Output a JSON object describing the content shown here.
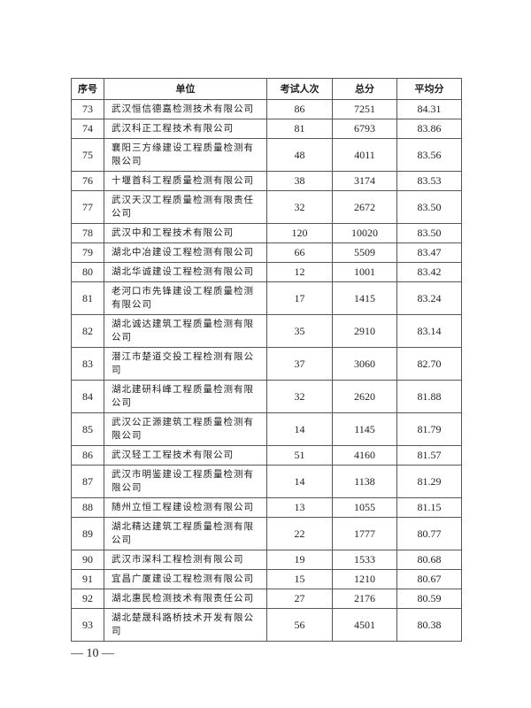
{
  "table": {
    "headers": [
      "序号",
      "单位",
      "考试人次",
      "总分",
      "平均分"
    ],
    "rows": [
      [
        "73",
        "武汉恒信德嘉检测技术有限公司",
        "86",
        "7251",
        "84.31"
      ],
      [
        "74",
        "武汉科正工程技术有限公司",
        "81",
        "6793",
        "83.86"
      ],
      [
        "75",
        "襄阳三方缘建设工程质量检测有限公司",
        "48",
        "4011",
        "83.56"
      ],
      [
        "76",
        "十堰首科工程质量检测有限公司",
        "38",
        "3174",
        "83.53"
      ],
      [
        "77",
        "武汉天汉工程质量检测有限责任公司",
        "32",
        "2672",
        "83.50"
      ],
      [
        "78",
        "武汉中和工程技术有限公司",
        "120",
        "10020",
        "83.50"
      ],
      [
        "79",
        "湖北中冶建设工程检测有限公司",
        "66",
        "5509",
        "83.47"
      ],
      [
        "80",
        "湖北华诚建设工程检测有限公司",
        "12",
        "1001",
        "83.42"
      ],
      [
        "81",
        "老河口市先锋建设工程质量检测有限公司",
        "17",
        "1415",
        "83.24"
      ],
      [
        "82",
        "湖北诚达建筑工程质量检测有限公司",
        "35",
        "2910",
        "83.14"
      ],
      [
        "83",
        "潜江市楚道交投工程检测有限公司",
        "37",
        "3060",
        "82.70"
      ],
      [
        "84",
        "湖北建研科峰工程质量检测有限公司",
        "32",
        "2620",
        "81.88"
      ],
      [
        "85",
        "武汉公正源建筑工程质量检测有限公司",
        "14",
        "1145",
        "81.79"
      ],
      [
        "86",
        "武汉轻工工程技术有限公司",
        "51",
        "4160",
        "81.57"
      ],
      [
        "87",
        "武汉市明鉴建设工程质量检测有限公司",
        "14",
        "1138",
        "81.29"
      ],
      [
        "88",
        "随州立恒工程建设检测有限公司",
        "13",
        "1055",
        "81.15"
      ],
      [
        "89",
        "湖北精达建筑工程质量检测有限公司",
        "22",
        "1777",
        "80.77"
      ],
      [
        "90",
        "武汉市深科工程检测有限公司",
        "19",
        "1533",
        "80.68"
      ],
      [
        "91",
        "宜昌广厦建设工程检测有限公司",
        "15",
        "1210",
        "80.67"
      ],
      [
        "92",
        "湖北惠民检测技术有限责任公司",
        "27",
        "2176",
        "80.59"
      ],
      [
        "93",
        "湖北楚晟科路桥技术开发有限公司",
        "56",
        "4501",
        "80.38"
      ]
    ]
  },
  "footer": {
    "page_number": "— 10 —"
  }
}
